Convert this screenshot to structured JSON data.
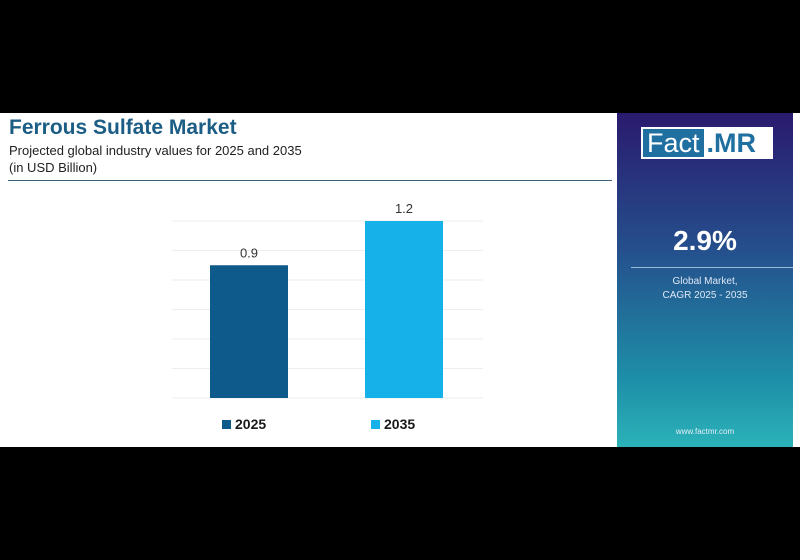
{
  "header": {
    "title": "Ferrous Sulfate Market",
    "subtitle": "Projected global industry values for 2025 and 2035",
    "unit": "(in USD Billion)"
  },
  "side_panel": {
    "logo_left": "Fact",
    "logo_right": ".MR",
    "cagr_value": "2.9%",
    "cagr_line1": "Global Market,",
    "cagr_line2": "CAGR 2025 - 2035",
    "website": "www.factmr.com"
  },
  "chart_data": {
    "type": "bar",
    "title": "Ferrous Sulfate Market",
    "categories": [
      "2025",
      "2035"
    ],
    "values": [
      0.9,
      1.2
    ],
    "value_labels": [
      "0.9",
      "1.2"
    ],
    "colors": [
      "#0e5a8a",
      "#17b1ea"
    ],
    "legend": [
      "2025",
      "2035"
    ],
    "legend_position": "bottom",
    "ylabel": "USD Billion",
    "ylim": [
      0,
      1.2
    ],
    "grid": true
  }
}
